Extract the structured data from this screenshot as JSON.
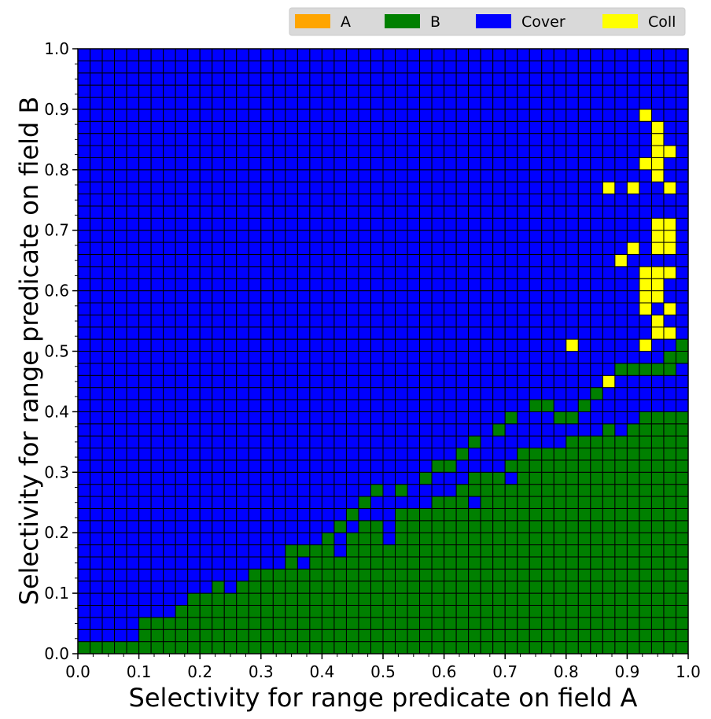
{
  "chart_data": {
    "type": "heatmap",
    "title": "",
    "xlabel": "Selectivity for range predicate on field A",
    "ylabel": "Selectivity for range predicate on field B",
    "xlim": [
      0.0,
      1.0
    ],
    "ylim": [
      0.0,
      1.0
    ],
    "xticks": [
      "0.0",
      "0.1",
      "0.2",
      "0.3",
      "0.4",
      "0.5",
      "0.6",
      "0.7",
      "0.8",
      "0.9",
      "1.0"
    ],
    "yticks": [
      "0.0",
      "0.1",
      "0.2",
      "0.3",
      "0.4",
      "0.5",
      "0.6",
      "0.7",
      "0.8",
      "0.9",
      "1.0"
    ],
    "grid_cells": 50,
    "cell_size": 0.02,
    "legend": {
      "placement": "top-right",
      "entries": [
        {
          "label": "A",
          "color": "#ffa500"
        },
        {
          "label": "B",
          "color": "#008000"
        },
        {
          "label": "Cover",
          "color": "#0000ff"
        },
        {
          "label": "Coll",
          "color": "#ffff00"
        }
      ]
    },
    "b_region_top_edge_row_per_column": [
      1,
      1,
      1,
      1,
      1,
      3,
      3,
      3,
      4,
      5,
      5,
      6,
      5,
      6,
      7,
      7,
      8,
      8,
      8,
      8,
      10,
      8,
      10,
      11,
      11,
      9,
      12,
      12,
      12,
      13,
      13,
      14,
      15,
      15,
      15,
      16,
      17,
      17,
      17,
      17,
      18,
      18,
      18,
      19,
      19,
      19,
      20,
      20,
      20,
      20
    ],
    "b_region_description": "Green (B) occupies the lower-right triangular region below the boundary; Cover (blue) fills the rest of the grid.",
    "exceptions": {
      "cover_in_b_region": [
        [
          16,
          7
        ],
        [
          18,
          7
        ],
        [
          24,
          11
        ],
        [
          25,
          11
        ],
        [
          26,
          12
        ],
        [
          32,
          12
        ],
        [
          35,
          14
        ],
        [
          38,
          17
        ],
        [
          42,
          18
        ],
        [
          44,
          18
        ],
        [
          45,
          19
        ],
        [
          47,
          20
        ]
      ],
      "b_in_cover_region": [
        [
          17,
          8
        ],
        [
          18,
          8
        ],
        [
          19,
          8
        ],
        [
          20,
          9
        ],
        [
          21,
          10
        ],
        [
          22,
          11
        ],
        [
          23,
          12
        ],
        [
          24,
          13
        ],
        [
          26,
          13
        ],
        [
          28,
          14
        ],
        [
          29,
          15
        ],
        [
          30,
          15
        ],
        [
          31,
          16
        ],
        [
          32,
          17
        ],
        [
          34,
          18
        ],
        [
          35,
          19
        ],
        [
          37,
          20
        ],
        [
          38,
          20
        ],
        [
          39,
          19
        ],
        [
          40,
          19
        ],
        [
          41,
          20
        ],
        [
          42,
          21
        ],
        [
          43,
          22
        ],
        [
          44,
          23
        ],
        [
          45,
          23
        ],
        [
          46,
          23
        ],
        [
          47,
          23
        ],
        [
          48,
          23
        ],
        [
          48,
          24
        ],
        [
          49,
          24
        ],
        [
          49,
          25
        ]
      ],
      "coll_cells": [
        [
          46,
          44
        ],
        [
          47,
          43
        ],
        [
          47,
          42
        ],
        [
          47,
          41
        ],
        [
          48,
          41
        ],
        [
          46,
          40
        ],
        [
          47,
          40
        ],
        [
          47,
          39
        ],
        [
          48,
          38
        ],
        [
          45,
          38
        ],
        [
          43,
          38
        ],
        [
          47,
          35
        ],
        [
          48,
          35
        ],
        [
          47,
          34
        ],
        [
          48,
          34
        ],
        [
          47,
          33
        ],
        [
          48,
          33
        ],
        [
          45,
          33
        ],
        [
          44,
          32
        ],
        [
          46,
          31
        ],
        [
          47,
          31
        ],
        [
          48,
          31
        ],
        [
          46,
          30
        ],
        [
          47,
          30
        ],
        [
          47,
          29
        ],
        [
          46,
          29
        ],
        [
          48,
          28
        ],
        [
          46,
          28
        ],
        [
          47,
          27
        ],
        [
          47,
          26
        ],
        [
          48,
          26
        ],
        [
          46,
          25
        ],
        [
          40,
          25
        ],
        [
          43,
          22
        ]
      ]
    }
  }
}
